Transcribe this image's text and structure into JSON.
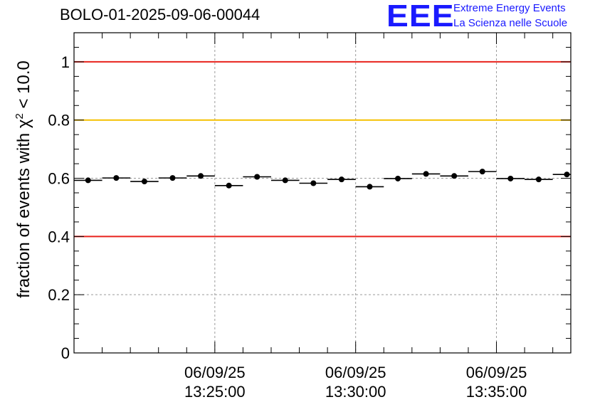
{
  "header": {
    "run_title": "BOLO-01-2025-09-06-00044",
    "logo_mark": "EEE",
    "logo_line1": "Extreme Energy Events",
    "logo_line2": "La Scienza nelle Scuole",
    "logo_color": "#1a1aff"
  },
  "chart_data": {
    "type": "scatter",
    "title": "BOLO-01-2025-09-06-00044",
    "ylabel_prefix": "fraction of events with χ",
    "ylabel_sup": "2",
    "ylabel_suffix": " < 10.0",
    "xlabel": "",
    "ylim": [
      0,
      1.1
    ],
    "yticks": [
      0,
      0.2,
      0.4,
      0.6,
      0.8,
      1
    ],
    "ytick_labels": [
      "0",
      "0.2",
      "0.4",
      "0.6",
      "0.8",
      "1"
    ],
    "xlim_minutes": [
      0,
      17.64
    ],
    "x_major_ticks_minutes": [
      5,
      10,
      15
    ],
    "x_minor_ticks_minutes": [
      1,
      2,
      3,
      4,
      6,
      7,
      8,
      9,
      11,
      12,
      13,
      14,
      16,
      17
    ],
    "x_tick_labels": [
      {
        "date": "06/09/25",
        "time": "13:25:00"
      },
      {
        "date": "06/09/25",
        "time": "13:30:00"
      },
      {
        "date": "06/09/25",
        "time": "13:35:00"
      }
    ],
    "grid": true,
    "reference_lines": [
      {
        "name": "upper-limit",
        "value": 1.0,
        "color": "#e8221c"
      },
      {
        "name": "warning",
        "value": 0.8,
        "color": "#f5c000"
      },
      {
        "name": "lower-limit",
        "value": 0.4,
        "color": "#e8221c"
      }
    ],
    "series": [
      {
        "name": "fraction",
        "bin_width_minutes": 1.0,
        "x_minutes": [
          0.5,
          1.5,
          2.5,
          3.5,
          4.5,
          5.5,
          6.5,
          7.5,
          8.5,
          9.5,
          10.5,
          11.5,
          12.5,
          13.5,
          14.5,
          15.5,
          16.5,
          17.5
        ],
        "values": [
          0.593,
          0.601,
          0.589,
          0.601,
          0.608,
          0.575,
          0.605,
          0.593,
          0.583,
          0.596,
          0.571,
          0.599,
          0.615,
          0.608,
          0.623,
          0.599,
          0.596,
          0.613
        ],
        "errors": [
          0.007,
          0.007,
          0.007,
          0.007,
          0.007,
          0.007,
          0.007,
          0.007,
          0.007,
          0.007,
          0.007,
          0.007,
          0.007,
          0.007,
          0.007,
          0.007,
          0.007,
          0.007
        ]
      }
    ]
  }
}
